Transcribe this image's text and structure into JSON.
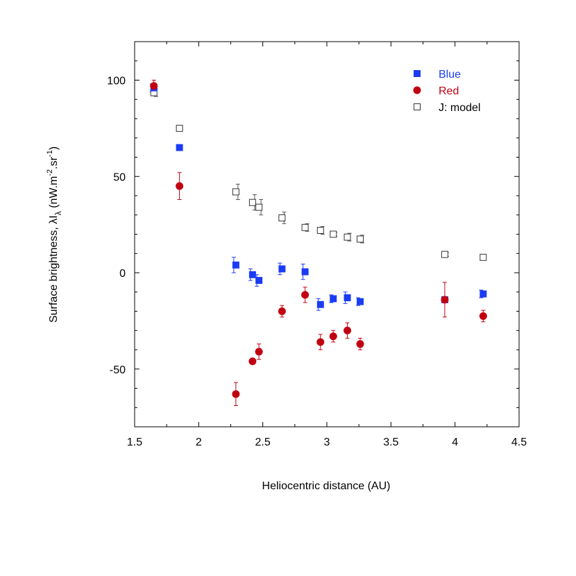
{
  "chart_data": {
    "type": "scatter",
    "xlabel": "Heliocentric distance (AU)",
    "ylabel": {
      "main": "Surface brightness, λI",
      "sub": "λ",
      "units_open": "  (nW.m",
      "exp1": "-2",
      "mid": ".sr",
      "exp2": "-1",
      "close": ")"
    },
    "xlim": [
      1.5,
      4.5
    ],
    "ylim": [
      -80,
      120
    ],
    "x_ticks": [
      "1.5",
      "2",
      "2.5",
      "3",
      "3.5",
      "4",
      "4.5"
    ],
    "y_ticks": [
      "-50",
      "0",
      "50",
      "100"
    ],
    "colors": {
      "blue": "#1a3cf5",
      "red": "#c00010",
      "model": "#333333"
    },
    "series": [
      {
        "name": "Blue",
        "marker": "filled-square",
        "color": "#1a3cf5",
        "points": [
          {
            "x": 1.65,
            "y": 96,
            "err": 2
          },
          {
            "x": 1.85,
            "y": 65,
            "err": 0
          },
          {
            "x": 2.29,
            "y": 4,
            "err": 4
          },
          {
            "x": 2.42,
            "y": -1,
            "err": 3
          },
          {
            "x": 2.47,
            "y": -4,
            "err": 3
          },
          {
            "x": 2.65,
            "y": 2,
            "err": 3
          },
          {
            "x": 2.83,
            "y": 0.5,
            "err": 4
          },
          {
            "x": 2.95,
            "y": -16.5,
            "err": 3
          },
          {
            "x": 3.05,
            "y": -13.5,
            "err": 2
          },
          {
            "x": 3.16,
            "y": -13,
            "err": 3
          },
          {
            "x": 3.26,
            "y": -15,
            "err": 2
          },
          {
            "x": 3.92,
            "y": -14,
            "err": 0
          },
          {
            "x": 4.22,
            "y": -11,
            "err": 2
          }
        ]
      },
      {
        "name": "Red",
        "marker": "filled-circle",
        "color": "#c00010",
        "points": [
          {
            "x": 1.65,
            "y": 97,
            "err": 3
          },
          {
            "x": 1.85,
            "y": 45,
            "err": 7
          },
          {
            "x": 2.29,
            "y": -63,
            "err": 6
          },
          {
            "x": 2.42,
            "y": -46,
            "err": 0
          },
          {
            "x": 2.47,
            "y": -41,
            "err": 4
          },
          {
            "x": 2.65,
            "y": -20,
            "err": 3
          },
          {
            "x": 2.83,
            "y": -11.5,
            "err": 4
          },
          {
            "x": 2.95,
            "y": -36,
            "err": 4
          },
          {
            "x": 3.05,
            "y": -33,
            "err": 3
          },
          {
            "x": 3.16,
            "y": -30,
            "err": 4
          },
          {
            "x": 3.26,
            "y": -37,
            "err": 3
          },
          {
            "x": 3.92,
            "y": -14,
            "err": 9
          },
          {
            "x": 4.22,
            "y": -22.5,
            "err": 3
          }
        ]
      },
      {
        "name": "J: model",
        "marker": "open-square",
        "color": "#333333",
        "points": [
          {
            "x": 1.65,
            "y": 93.5,
            "err": 2
          },
          {
            "x": 1.85,
            "y": 75,
            "err": 0
          },
          {
            "x": 2.29,
            "y": 42,
            "err": 4
          },
          {
            "x": 2.42,
            "y": 36.5,
            "err": 4
          },
          {
            "x": 2.47,
            "y": 34,
            "err": 4
          },
          {
            "x": 2.65,
            "y": 28.5,
            "err": 3
          },
          {
            "x": 2.83,
            "y": 23.5,
            "err": 2
          },
          {
            "x": 2.95,
            "y": 22,
            "err": 2
          },
          {
            "x": 3.05,
            "y": 20,
            "err": 1
          },
          {
            "x": 3.16,
            "y": 18.5,
            "err": 2
          },
          {
            "x": 3.26,
            "y": 17.5,
            "err": 2
          },
          {
            "x": 3.92,
            "y": 9.5,
            "err": 1
          },
          {
            "x": 4.22,
            "y": 8,
            "err": 0
          }
        ]
      }
    ],
    "legend_position": "top-right"
  }
}
